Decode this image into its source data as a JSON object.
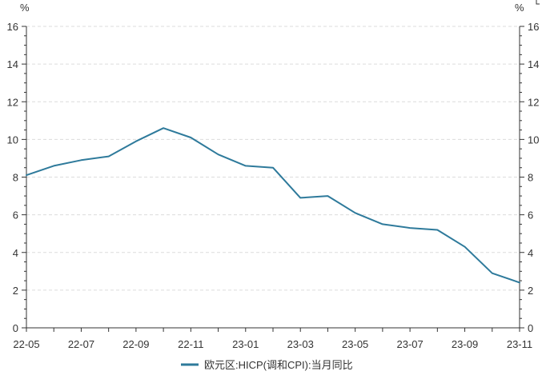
{
  "chart_data": {
    "type": "line",
    "y_unit_left": "%",
    "y_unit_right": "%",
    "ylim": [
      0,
      16
    ],
    "yticks": [
      0,
      2,
      4,
      6,
      8,
      10,
      12,
      14,
      16
    ],
    "grid": true,
    "legend_position": "bottom",
    "x": [
      "22-05",
      "22-06",
      "22-07",
      "22-08",
      "22-09",
      "22-10",
      "22-11",
      "22-12",
      "23-01",
      "23-02",
      "23-03",
      "23-04",
      "23-05",
      "23-06",
      "23-07",
      "23-08",
      "23-09",
      "23-10",
      "23-11"
    ],
    "xtick_labels": [
      "22-05",
      "22-07",
      "22-09",
      "22-11",
      "23-01",
      "23-03",
      "23-05",
      "23-07",
      "23-09",
      "23-11"
    ],
    "series": [
      {
        "name": "欧元区:HICP(调和CPI):当月同比",
        "color": "#2e7a9b",
        "values": [
          8.1,
          8.6,
          8.9,
          9.1,
          9.9,
          10.6,
          10.1,
          9.2,
          8.6,
          8.5,
          6.9,
          7.0,
          6.1,
          5.5,
          5.3,
          5.2,
          4.3,
          2.9,
          2.4
        ]
      }
    ]
  }
}
